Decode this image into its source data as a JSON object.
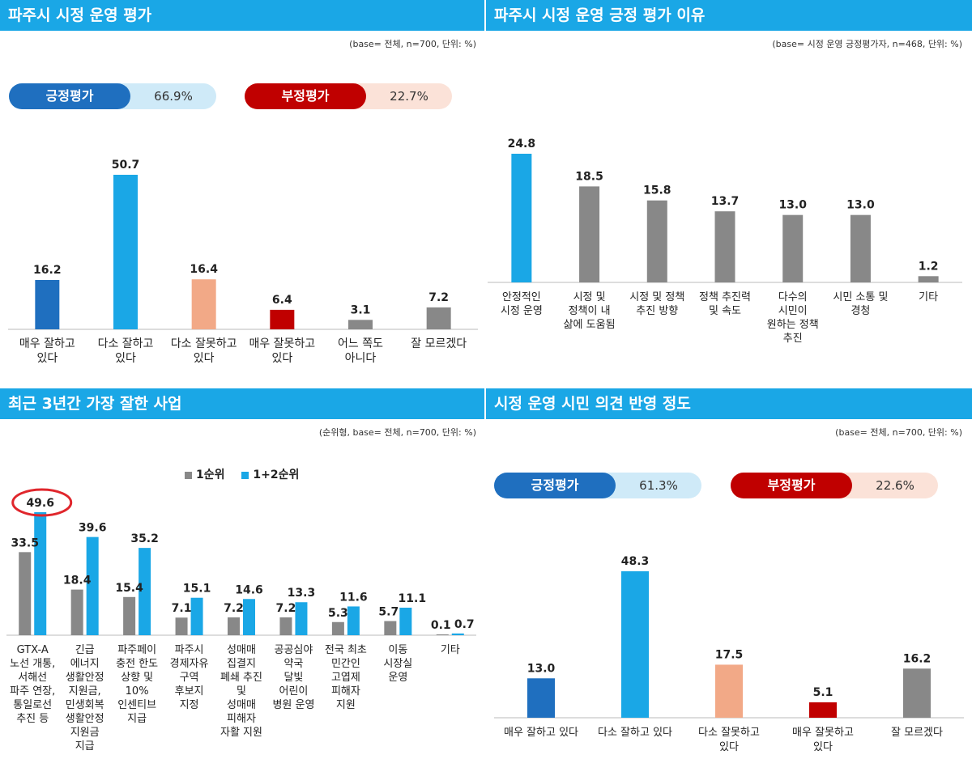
{
  "colors": {
    "header": "#1aa7e6",
    "dark_blue": "#1f6fbf",
    "light_blue": "#1aa7e6",
    "peach": "#f2a987",
    "red": "#c00000",
    "gray": "#888888",
    "pos_pill_bg": "#cfeaf8",
    "neg_pill_bg": "#fbe2d8",
    "circle": "#e0262c"
  },
  "panels": {
    "p1": {
      "title": "파주시 시정 운영 평가",
      "base": "(base= 전체, n=700, 단위: %)",
      "pos_label": "긍정평가",
      "pos_value": "66.9%",
      "neg_label": "부정평가",
      "neg_value": "22.7%"
    },
    "p2": {
      "title": "파주시 시정 운영 긍정 평가 이유",
      "base": "(base= 시정 운영 긍정평가자, n=468, 단위: %)"
    },
    "p3": {
      "title": "최근 3년간 가장 잘한 사업",
      "base": "(순위형, base= 전체, n=700, 단위: %)"
    },
    "p4": {
      "title": "시정 운영 시민 의견 반영 정도",
      "base": "(base= 전체, n=700, 단위: %)",
      "pos_label": "긍정평가",
      "pos_value": "61.3%",
      "neg_label": "부정평가",
      "neg_value": "22.6%"
    }
  },
  "chart_data": [
    {
      "type": "bar",
      "title": "파주시 시정 운영 평가",
      "categories": [
        [
          "매우 잘하고",
          "있다"
        ],
        [
          "다소 잘하고",
          "있다"
        ],
        [
          "다소 잘못하고",
          "있다"
        ],
        [
          "매우 잘못하고",
          "있다"
        ],
        [
          "어느 쪽도",
          "아니다"
        ],
        [
          "잘 모르겠다"
        ]
      ],
      "values": [
        16.2,
        50.7,
        16.4,
        6.4,
        3.1,
        7.2
      ],
      "labels": [
        "16.2",
        "50.7",
        "16.4",
        "6.4",
        "3.1",
        "7.2"
      ],
      "bar_colors": [
        "dark_blue",
        "light_blue",
        "peach",
        "red",
        "gray",
        "gray"
      ],
      "ylim": [
        0,
        55
      ]
    },
    {
      "type": "bar",
      "title": "파주시 시정 운영 긍정 평가 이유",
      "categories": [
        [
          "안정적인",
          "시정 운영"
        ],
        [
          "시정 및",
          "정책이 내",
          "삶에 도움됨"
        ],
        [
          "시정 및 정책",
          "추진 방향"
        ],
        [
          "정책 추진력",
          "및 속도"
        ],
        [
          "다수의",
          "시민이",
          "원하는 정책",
          "추진"
        ],
        [
          "시민 소통 및",
          "경청"
        ],
        [
          "기타"
        ]
      ],
      "values": [
        24.8,
        18.5,
        15.8,
        13.7,
        13.0,
        13.0,
        1.2
      ],
      "labels": [
        "24.8",
        "18.5",
        "15.8",
        "13.7",
        "13.0",
        "13.0",
        "1.2"
      ],
      "bar_colors": [
        "light_blue",
        "gray",
        "gray",
        "gray",
        "gray",
        "gray",
        "gray"
      ],
      "ylim": [
        0,
        27
      ]
    },
    {
      "type": "bar",
      "title": "최근 3년간 가장 잘한 사업",
      "categories": [
        [
          "GTX-A",
          "노선 개통,",
          "서해선",
          "파주 연장,",
          "통일로선",
          "추진 등"
        ],
        [
          "긴급",
          "에너지",
          "생활안정",
          "지원금,",
          "민생회복",
          "생활안정",
          "지원금",
          "지급"
        ],
        [
          "파주페이",
          "충전 한도",
          "상향 및",
          "10%",
          "인센티브",
          "지급"
        ],
        [
          "파주시",
          "경제자유",
          "구역",
          "후보지",
          "지정"
        ],
        [
          "성매매",
          "집결지",
          "폐쇄 추진",
          "및",
          "성매매",
          "피해자",
          "자활 지원"
        ],
        [
          "공공심야",
          "약국",
          "달빛",
          "어린이",
          "병원 운영"
        ],
        [
          "전국 최초",
          "민간인",
          "고엽제",
          "피해자",
          "지원"
        ],
        [
          "이동",
          "시장실",
          "운영"
        ],
        [
          "기타"
        ]
      ],
      "legend": [
        "1순위",
        "1+2순위"
      ],
      "series": [
        {
          "name": "1순위",
          "values": [
            33.5,
            18.4,
            15.4,
            7.1,
            7.2,
            7.2,
            5.3,
            5.7,
            0.1
          ],
          "labels": [
            "33.5",
            "18.4",
            "15.4",
            "7.1",
            "7.2",
            "7.2",
            "5.3",
            "5.7",
            "0.1"
          ]
        },
        {
          "name": "1+2순위",
          "values": [
            49.6,
            39.6,
            35.2,
            15.1,
            14.6,
            13.3,
            11.6,
            11.1,
            0.7
          ],
          "labels": [
            "49.6",
            "39.6",
            "35.2",
            "15.1",
            "14.6",
            "13.3",
            "11.6",
            "11.1",
            "0.7"
          ]
        }
      ],
      "ylim": [
        0,
        52
      ]
    },
    {
      "type": "bar",
      "title": "시정 운영 시민 의견 반영 정도",
      "categories": [
        [
          "매우 잘하고 있다"
        ],
        [
          "다소 잘하고 있다"
        ],
        [
          "다소 잘못하고",
          "있다"
        ],
        [
          "매우 잘못하고",
          "있다"
        ],
        [
          "잘 모르겠다"
        ]
      ],
      "values": [
        13.0,
        48.3,
        17.5,
        5.1,
        16.2
      ],
      "labels": [
        "13.0",
        "48.3",
        "17.5",
        "5.1",
        "16.2"
      ],
      "bar_colors": [
        "dark_blue",
        "light_blue",
        "peach",
        "red",
        "gray"
      ],
      "ylim": [
        0,
        52
      ]
    }
  ]
}
